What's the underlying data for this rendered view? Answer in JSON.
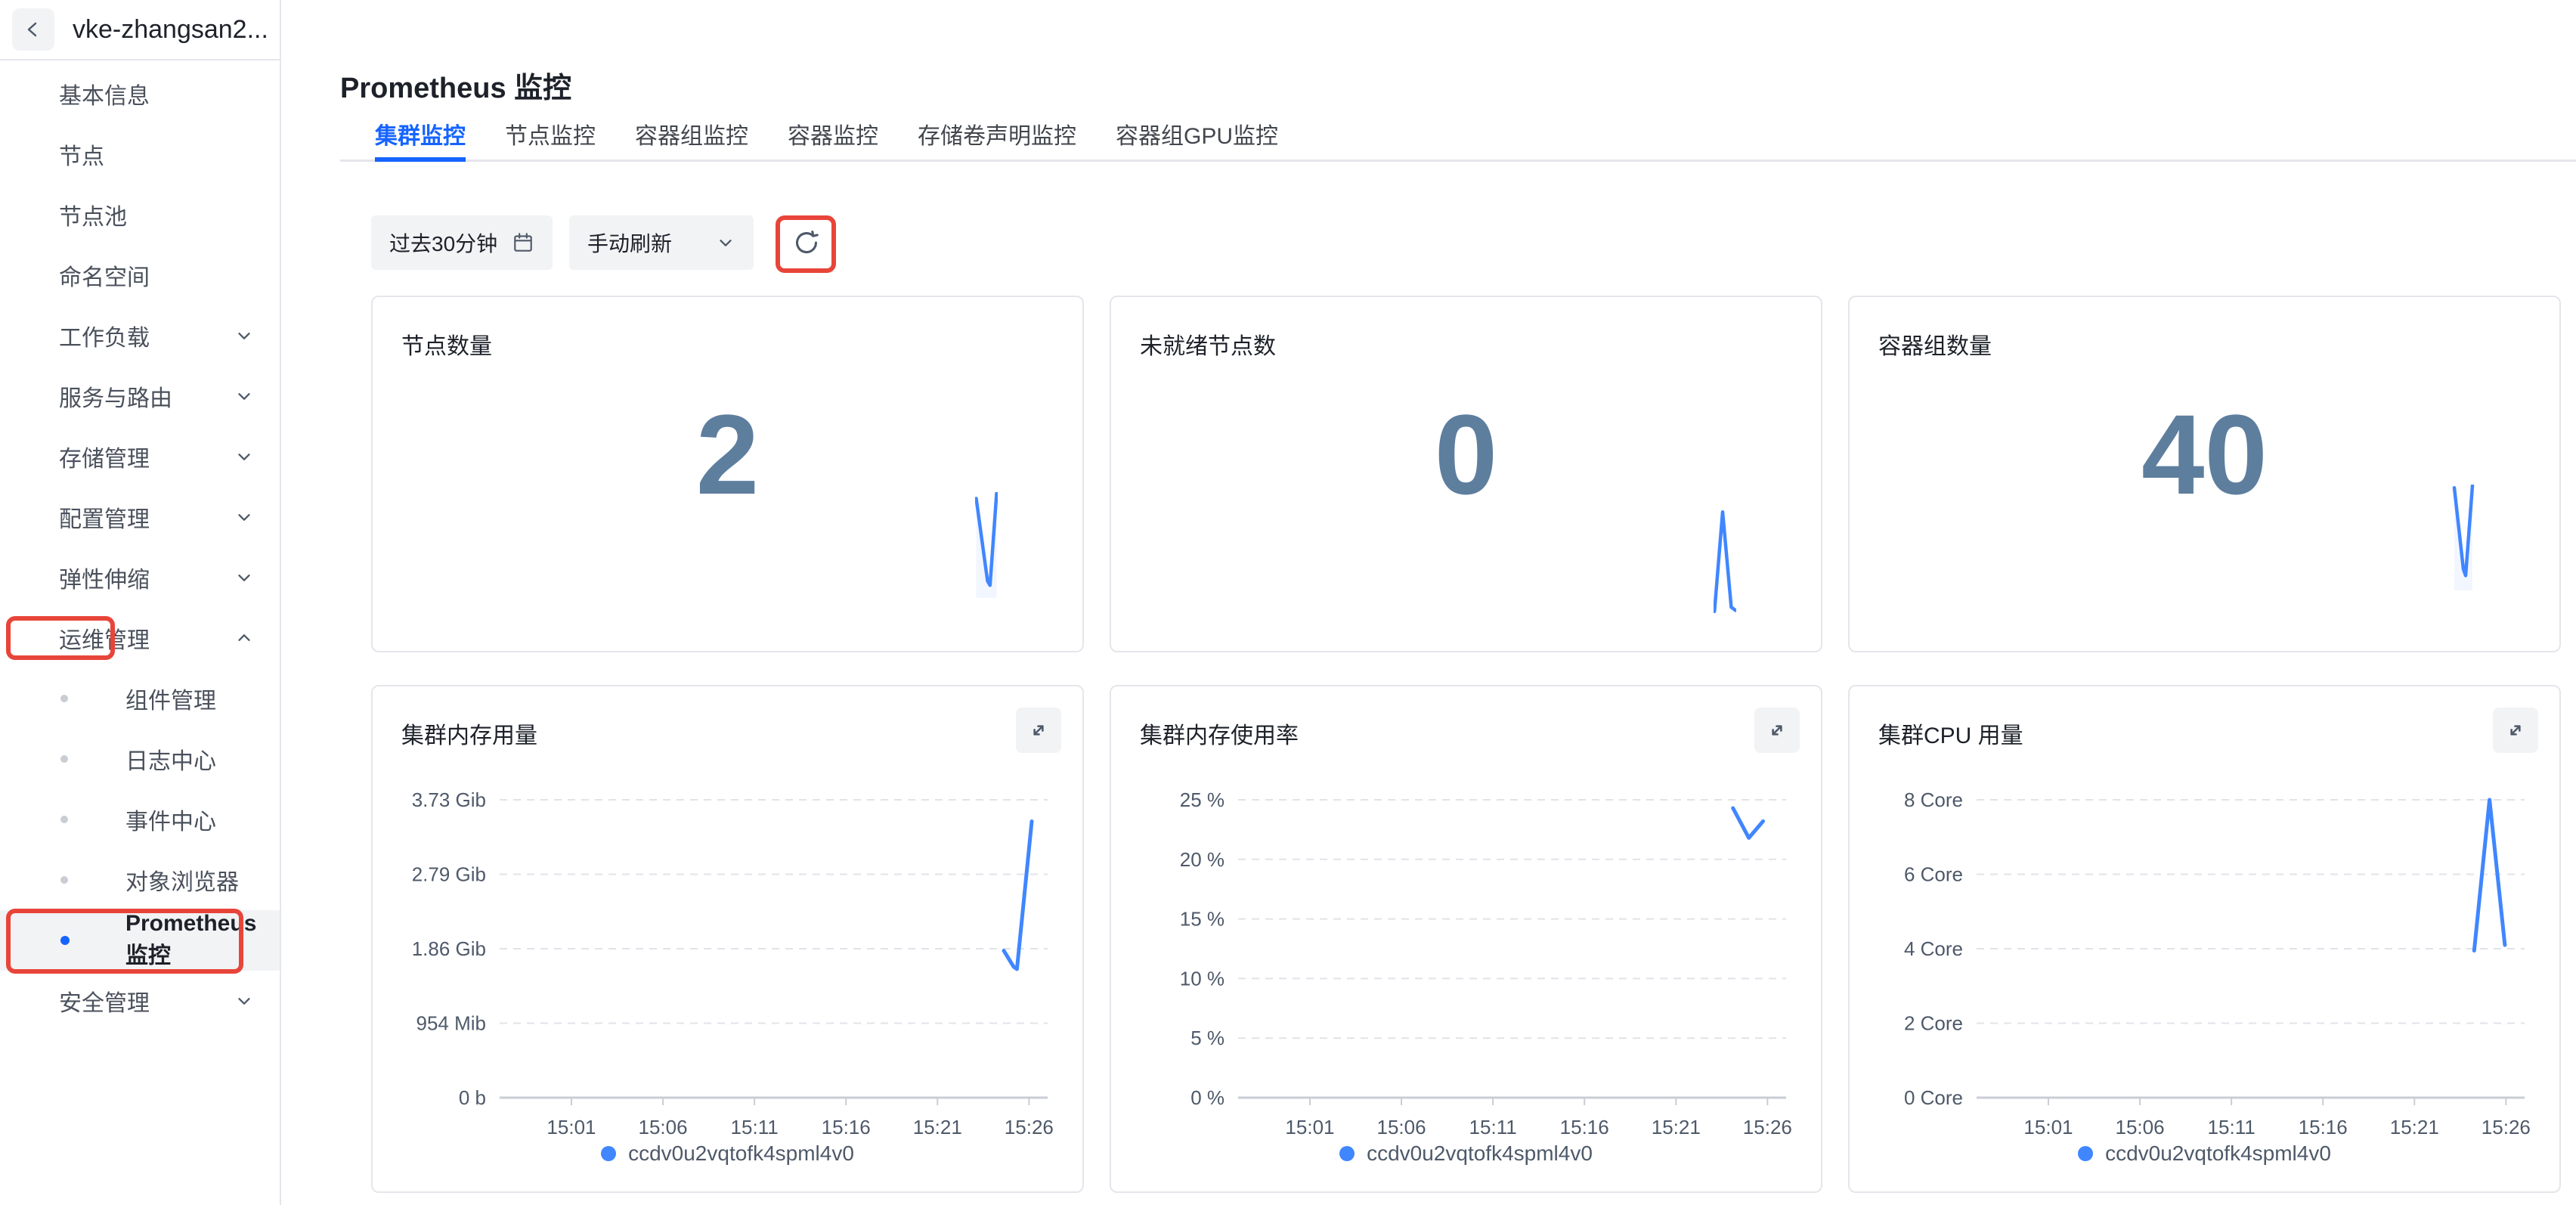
{
  "colors": {
    "accent": "#1664ff",
    "chart_line": "#4086ff",
    "metric_number": "#5e7e9e",
    "annotation_red": "#e8453a"
  },
  "sidebar": {
    "title": "vke-zhangsan2...",
    "items": [
      {
        "label": "基本信息"
      },
      {
        "label": "节点"
      },
      {
        "label": "节点池"
      },
      {
        "label": "命名空间"
      },
      {
        "label": "工作负载"
      },
      {
        "label": "服务与路由"
      },
      {
        "label": "存储管理"
      },
      {
        "label": "配置管理"
      },
      {
        "label": "弹性伸缩"
      },
      {
        "label": "运维管理"
      },
      {
        "label": "安全管理"
      }
    ],
    "ops_submenu": [
      {
        "label": "组件管理"
      },
      {
        "label": "日志中心"
      },
      {
        "label": "事件中心"
      },
      {
        "label": "对象浏览器"
      },
      {
        "label": "Prometheus 监控"
      }
    ]
  },
  "page": {
    "title": "Prometheus 监控"
  },
  "tabs": [
    {
      "label": "集群监控",
      "active": true
    },
    {
      "label": "节点监控",
      "active": false
    },
    {
      "label": "容器组监控",
      "active": false
    },
    {
      "label": "容器监控",
      "active": false
    },
    {
      "label": "存储卷声明监控",
      "active": false
    },
    {
      "label": "容器组GPU监控",
      "active": false
    }
  ],
  "toolbar": {
    "time_range": "过去30分钟",
    "refresh_mode": "手动刷新"
  },
  "stat_cards": [
    {
      "title": "节点数量",
      "value": "2",
      "spark": {
        "points": [
          [
            0.05,
            0.06
          ],
          [
            0.55,
            0.84
          ],
          [
            0.66,
            0.88
          ],
          [
            0.95,
            0.01
          ]
        ],
        "area": true
      }
    },
    {
      "title": "未就绪节点数",
      "value": "0",
      "spark": {
        "points": [
          [
            0.04,
            0.97
          ],
          [
            0.4,
            0.03
          ],
          [
            0.78,
            0.93
          ],
          [
            0.97,
            0.96
          ]
        ],
        "area": false
      }
    },
    {
      "title": "容器组数量",
      "value": "40",
      "spark": {
        "points": [
          [
            0.1,
            0.03
          ],
          [
            0.5,
            0.8
          ],
          [
            0.6,
            0.86
          ],
          [
            0.9,
            0.01
          ]
        ],
        "area": true
      }
    }
  ],
  "chart_data": [
    {
      "type": "line",
      "title": "集群内存用量",
      "y_ticks": [
        "3.73 Gib",
        "2.79 Gib",
        "1.86 Gib",
        "954 Mib",
        "0 b"
      ],
      "y_max": 3.73,
      "x_ticks": [
        "15:01",
        "15:06",
        "15:11",
        "15:16",
        "15:21",
        "15:26"
      ],
      "legend": "ccdv0u2vqtofk4spml4v0",
      "series": [
        {
          "name": "ccdv0u2vqtofk4spml4v0",
          "points": [
            [
              0.92,
              1.84
            ],
            [
              0.938,
              1.64
            ],
            [
              0.944,
              1.61
            ],
            [
              0.971,
              3.46
            ]
          ]
        }
      ]
    },
    {
      "type": "line",
      "title": "集群内存使用率",
      "y_ticks": [
        "25 %",
        "20 %",
        "15 %",
        "10 %",
        "5 %",
        "0 %"
      ],
      "y_max": 25,
      "x_ticks": [
        "15:01",
        "15:06",
        "15:11",
        "15:16",
        "15:21",
        "15:26"
      ],
      "legend": "ccdv0u2vqtofk4spml4v0",
      "series": [
        {
          "name": "ccdv0u2vqtofk4spml4v0",
          "points": [
            [
              0.903,
              24.3
            ],
            [
              0.932,
              21.8
            ],
            [
              0.958,
              23.2
            ]
          ]
        }
      ]
    },
    {
      "type": "line",
      "title": "集群CPU 用量",
      "y_ticks": [
        "8 Core",
        "6 Core",
        "4 Core",
        "2 Core",
        "0 Core"
      ],
      "y_max": 8,
      "x_ticks": [
        "15:01",
        "15:06",
        "15:11",
        "15:16",
        "15:21",
        "15:26"
      ],
      "legend": "ccdv0u2vqtofk4spml4v0",
      "series": [
        {
          "name": "ccdv0u2vqtofk4spml4v0",
          "points": [
            [
              0.908,
              3.95
            ],
            [
              0.936,
              8.0
            ],
            [
              0.964,
              4.1
            ]
          ]
        }
      ]
    }
  ]
}
